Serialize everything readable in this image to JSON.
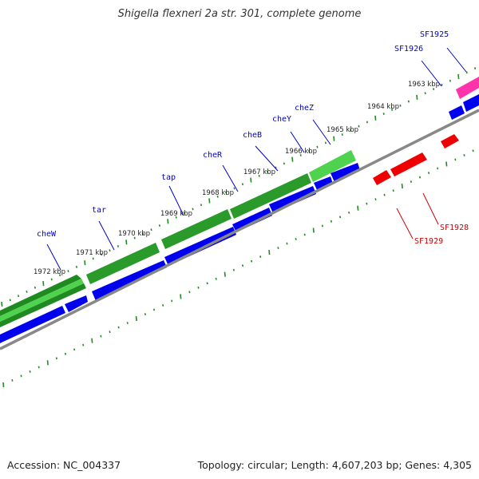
{
  "title": "Shigella flexneri 2a str. 301, complete genome",
  "footer": {
    "accession": "Accession: NC_004337",
    "topology": "Topology: circular; Length: 4,607,203 bp; Genes: 4,305"
  },
  "colors": {
    "outer_gene": "#0000ee",
    "inner_gene": "#ee0000",
    "highlight_gene": "#ff33aa",
    "cog_track": "#2eb82e",
    "tick": "#228b22",
    "backbone": "#888888"
  },
  "kbp_labels": [
    "1963 kbp",
    "1964 kbp",
    "1965 kbp",
    "1966 kbp",
    "1967 kbp",
    "1968 kbp",
    "1969 kbp",
    "1970 kbp",
    "1971 kbp",
    "1972 kbp"
  ],
  "gene_labels": {
    "outer": [
      "SF1925",
      "SF1926",
      "cheZ",
      "cheY",
      "cheB",
      "cheR",
      "tap",
      "tar",
      "cheW"
    ],
    "inner": [
      "SF1928",
      "SF1929"
    ]
  }
}
